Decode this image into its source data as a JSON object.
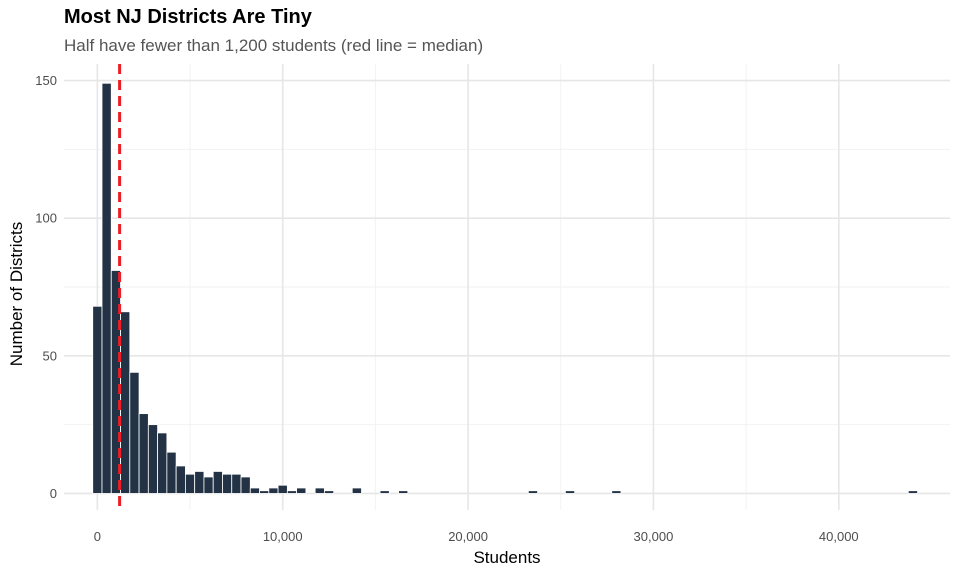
{
  "chart_data": {
    "type": "bar",
    "title": "Most NJ Districts Are Tiny",
    "subtitle": "Half have fewer than 1,200 students (red line = median)",
    "xlabel": "Students",
    "ylabel": "Number of Districts",
    "xlim": [
      -1800,
      46000
    ],
    "ylim": [
      -6,
      156
    ],
    "bin_width": 500,
    "x_ticks": [
      0,
      10000,
      20000,
      30000,
      40000
    ],
    "x_tick_labels": [
      "0",
      "10,000",
      "20,000",
      "30,000",
      "40,000"
    ],
    "y_ticks": [
      0,
      50,
      100,
      150
    ],
    "y_tick_labels": [
      "0",
      "50",
      "100",
      "150"
    ],
    "median": 1200,
    "grid": true,
    "bar_color": "#233345",
    "median_color": "#ee1c25",
    "bins": [
      {
        "x": 0,
        "count": 68
      },
      {
        "x": 500,
        "count": 149
      },
      {
        "x": 1000,
        "count": 81
      },
      {
        "x": 1500,
        "count": 66
      },
      {
        "x": 2000,
        "count": 44
      },
      {
        "x": 2500,
        "count": 29
      },
      {
        "x": 3000,
        "count": 25
      },
      {
        "x": 3500,
        "count": 22
      },
      {
        "x": 4000,
        "count": 15
      },
      {
        "x": 4500,
        "count": 10
      },
      {
        "x": 5000,
        "count": 7
      },
      {
        "x": 5500,
        "count": 8
      },
      {
        "x": 6000,
        "count": 6
      },
      {
        "x": 6500,
        "count": 8
      },
      {
        "x": 7000,
        "count": 7
      },
      {
        "x": 7500,
        "count": 7
      },
      {
        "x": 8000,
        "count": 6
      },
      {
        "x": 8500,
        "count": 2
      },
      {
        "x": 9000,
        "count": 1
      },
      {
        "x": 9500,
        "count": 2
      },
      {
        "x": 10000,
        "count": 3
      },
      {
        "x": 10500,
        "count": 1
      },
      {
        "x": 11000,
        "count": 2
      },
      {
        "x": 12000,
        "count": 2
      },
      {
        "x": 12500,
        "count": 1
      },
      {
        "x": 14000,
        "count": 2
      },
      {
        "x": 15500,
        "count": 1
      },
      {
        "x": 16500,
        "count": 1
      },
      {
        "x": 23500,
        "count": 1
      },
      {
        "x": 25500,
        "count": 1
      },
      {
        "x": 28000,
        "count": 1
      },
      {
        "x": 44000,
        "count": 1
      }
    ]
  }
}
